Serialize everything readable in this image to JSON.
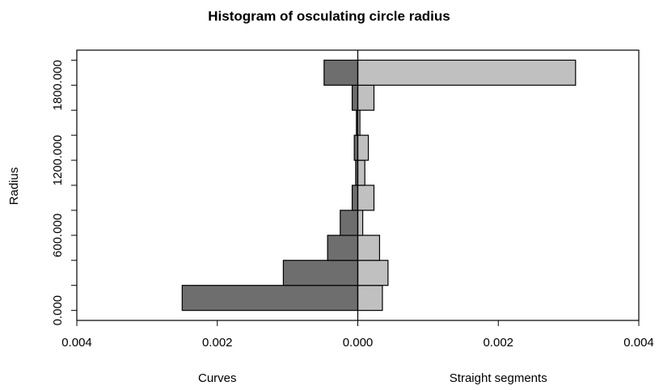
{
  "chart_data": {
    "type": "histogram",
    "title": "Histogram of osculating circle radius",
    "y_label": "Radius",
    "bins": [
      0,
      200,
      400,
      600,
      800,
      1000,
      1200,
      1400,
      1600,
      1800,
      2000
    ],
    "series": [
      {
        "name": "Curves",
        "color": "#6e6e6e",
        "values": [
          -0.0025,
          -0.00106,
          -0.00043,
          -0.00025,
          -8e-05,
          -3e-05,
          -5e-05,
          -2e-05,
          -8e-05,
          -0.00048
        ]
      },
      {
        "name": "Straight segments",
        "color": "#c0c0c0",
        "values": [
          0.00035,
          0.00043,
          0.00031,
          7e-05,
          0.00023,
          0.0001,
          0.00015,
          3e-05,
          0.00023,
          0.0031
        ]
      }
    ],
    "xlim": [
      -0.004,
      0.004
    ],
    "xticks": [
      {
        "value": -0.004,
        "label": "0.004"
      },
      {
        "value": -0.002,
        "label": "0.002"
      },
      {
        "value": 0,
        "label": "0.000"
      },
      {
        "value": 0.002,
        "label": "0.002"
      },
      {
        "value": 0.004,
        "label": "0.004"
      }
    ],
    "ylim": [
      -80,
      2080
    ],
    "yticks": [
      {
        "value": 0,
        "label": "0.000"
      },
      {
        "value": 200,
        "label": null
      },
      {
        "value": 400,
        "label": null
      },
      {
        "value": 600,
        "label": "600.000"
      },
      {
        "value": 800,
        "label": null
      },
      {
        "value": 1000,
        "label": null
      },
      {
        "value": 1200,
        "label": "1200.000"
      },
      {
        "value": 1400,
        "label": null
      },
      {
        "value": 1600,
        "label": null
      },
      {
        "value": 1800,
        "label": "1800.000"
      },
      {
        "value": 2000,
        "label": null
      }
    ]
  }
}
